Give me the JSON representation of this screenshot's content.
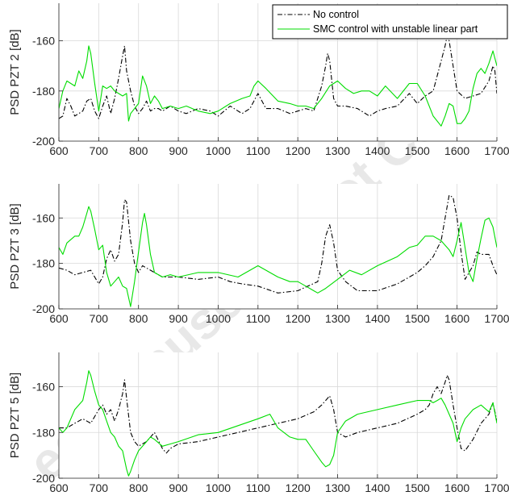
{
  "legend": {
    "entries": [
      {
        "label": "No control",
        "color": "#000000",
        "dash": "dashdot"
      },
      {
        "label": "SMC control with unstable linear part",
        "color": "#00dd00",
        "dash": "solid"
      }
    ]
  },
  "watermark": "ed Manuscript Not Co",
  "chart_data": [
    {
      "type": "line",
      "title": "",
      "xlabel": "",
      "ylabel": "PSD PZT 2 [dB]",
      "xlim": [
        600,
        1700
      ],
      "ylim": [
        -200,
        -145
      ],
      "xticks": [
        600,
        700,
        800,
        900,
        1000,
        1100,
        1200,
        1300,
        1400,
        1500,
        1600,
        1700
      ],
      "yticks": [
        -200,
        -180,
        -160
      ],
      "grid": true,
      "series": [
        {
          "name": "No control",
          "x": [
            600,
            610,
            620,
            630,
            640,
            650,
            660,
            670,
            680,
            690,
            700,
            710,
            720,
            730,
            740,
            750,
            760,
            765,
            770,
            780,
            790,
            800,
            810,
            820,
            830,
            840,
            850,
            860,
            880,
            900,
            920,
            950,
            980,
            1000,
            1030,
            1060,
            1080,
            1100,
            1120,
            1150,
            1180,
            1200,
            1220,
            1240,
            1260,
            1270,
            1275,
            1280,
            1290,
            1300,
            1320,
            1350,
            1380,
            1400,
            1420,
            1450,
            1480,
            1500,
            1520,
            1540,
            1560,
            1570,
            1575,
            1580,
            1590,
            1600,
            1620,
            1640,
            1660,
            1680,
            1690,
            1695,
            1700
          ],
          "y": [
            -191,
            -190,
            -183,
            -186,
            -190,
            -189,
            -188,
            -184,
            -183,
            -188,
            -191,
            -186,
            -182,
            -189,
            -183,
            -175,
            -166,
            -162,
            -172,
            -180,
            -186,
            -189,
            -187,
            -184,
            -188,
            -187,
            -187,
            -188,
            -186,
            -188,
            -189,
            -187,
            -188,
            -190,
            -186,
            -189,
            -187,
            -181,
            -187,
            -187,
            -189,
            -188,
            -187,
            -188,
            -178,
            -170,
            -165,
            -168,
            -183,
            -186,
            -186,
            -187,
            -190,
            -188,
            -187,
            -186,
            -181,
            -185,
            -182,
            -180,
            -168,
            -162,
            -158,
            -160,
            -170,
            -180,
            -183,
            -182,
            -181,
            -176,
            -170,
            -172,
            -181
          ]
        },
        {
          "name": "SMC control with unstable linear part",
          "x": [
            600,
            610,
            620,
            630,
            640,
            650,
            660,
            670,
            675,
            680,
            690,
            700,
            710,
            720,
            730,
            740,
            750,
            760,
            770,
            775,
            780,
            790,
            800,
            810,
            820,
            830,
            840,
            850,
            860,
            880,
            900,
            920,
            950,
            980,
            1000,
            1030,
            1060,
            1080,
            1090,
            1100,
            1120,
            1150,
            1180,
            1200,
            1220,
            1240,
            1260,
            1280,
            1300,
            1320,
            1340,
            1360,
            1380,
            1400,
            1420,
            1450,
            1480,
            1500,
            1520,
            1540,
            1560,
            1570,
            1580,
            1590,
            1600,
            1610,
            1620,
            1630,
            1640,
            1650,
            1660,
            1670,
            1680,
            1690,
            1700
          ],
          "y": [
            -187,
            -180,
            -176,
            -177,
            -178,
            -172,
            -175,
            -168,
            -162,
            -165,
            -177,
            -188,
            -178,
            -179,
            -178,
            -180,
            -181,
            -182,
            -181,
            -192,
            -189,
            -187,
            -185,
            -174,
            -178,
            -185,
            -182,
            -184,
            -187,
            -186,
            -187,
            -186,
            -188,
            -189,
            -188,
            -185,
            -183,
            -182,
            -178,
            -176,
            -179,
            -184,
            -185,
            -186,
            -186,
            -187,
            -183,
            -178,
            -176,
            -179,
            -181,
            -180,
            -180,
            -182,
            -178,
            -183,
            -177,
            -177,
            -182,
            -190,
            -194,
            -190,
            -185,
            -186,
            -193,
            -193,
            -191,
            -188,
            -179,
            -173,
            -171,
            -173,
            -169,
            -164,
            -170
          ]
        }
      ]
    },
    {
      "type": "line",
      "title": "",
      "xlabel": "",
      "ylabel": "PSD PZT 3 [dB]",
      "xlim": [
        600,
        1700
      ],
      "ylim": [
        -200,
        -145
      ],
      "xticks": [
        600,
        700,
        800,
        900,
        1000,
        1100,
        1200,
        1300,
        1400,
        1500,
        1600,
        1700
      ],
      "yticks": [
        -200,
        -180,
        -160
      ],
      "grid": true,
      "series": [
        {
          "name": "No control",
          "x": [
            600,
            620,
            640,
            660,
            680,
            700,
            710,
            720,
            730,
            740,
            750,
            760,
            765,
            770,
            780,
            790,
            800,
            810,
            820,
            840,
            860,
            880,
            900,
            950,
            1000,
            1030,
            1060,
            1100,
            1150,
            1200,
            1250,
            1260,
            1270,
            1280,
            1290,
            1300,
            1320,
            1350,
            1400,
            1450,
            1500,
            1520,
            1540,
            1560,
            1570,
            1580,
            1590,
            1600,
            1610,
            1620,
            1640,
            1650,
            1660,
            1680,
            1690,
            1700
          ],
          "y": [
            -182,
            -183,
            -185,
            -184,
            -183,
            -189,
            -186,
            -178,
            -174,
            -179,
            -176,
            -162,
            -152,
            -153,
            -170,
            -180,
            -184,
            -181,
            -182,
            -184,
            -186,
            -186,
            -186,
            -187,
            -186,
            -188,
            -189,
            -190,
            -193,
            -192,
            -188,
            -180,
            -168,
            -163,
            -171,
            -183,
            -188,
            -192,
            -192,
            -189,
            -184,
            -181,
            -177,
            -170,
            -160,
            -150,
            -151,
            -160,
            -175,
            -187,
            -181,
            -175,
            -176,
            -176,
            -181,
            -185
          ]
        },
        {
          "name": "SMC control with unstable linear part",
          "x": [
            600,
            610,
            620,
            640,
            650,
            660,
            670,
            675,
            680,
            690,
            700,
            710,
            720,
            730,
            740,
            750,
            760,
            770,
            780,
            790,
            800,
            810,
            815,
            820,
            830,
            840,
            860,
            880,
            900,
            950,
            1000,
            1050,
            1100,
            1150,
            1180,
            1200,
            1220,
            1240,
            1250,
            1270,
            1300,
            1330,
            1360,
            1400,
            1450,
            1480,
            1500,
            1520,
            1540,
            1560,
            1570,
            1580,
            1590,
            1600,
            1610,
            1620,
            1630,
            1640,
            1650,
            1660,
            1670,
            1680,
            1690,
            1700
          ],
          "y": [
            -173,
            -176,
            -171,
            -168,
            -168,
            -164,
            -158,
            -155,
            -157,
            -165,
            -174,
            -172,
            -184,
            -190,
            -188,
            -186,
            -190,
            -191,
            -199,
            -188,
            -175,
            -162,
            -158,
            -163,
            -176,
            -184,
            -186,
            -185,
            -186,
            -184,
            -184,
            -186,
            -181,
            -186,
            -188,
            -188,
            -190,
            -192,
            -193,
            -191,
            -187,
            -183,
            -185,
            -181,
            -177,
            -173,
            -172,
            -168,
            -168,
            -170,
            -172,
            -174,
            -177,
            -170,
            -162,
            -173,
            -184,
            -188,
            -178,
            -169,
            -161,
            -160,
            -164,
            -173
          ]
        }
      ]
    },
    {
      "type": "line",
      "title": "",
      "xlabel": "",
      "ylabel": "PSD PZT 5 [dB]",
      "xlim": [
        600,
        1700
      ],
      "ylim": [
        -200,
        -145
      ],
      "xticks": [
        600,
        700,
        800,
        900,
        1000,
        1100,
        1200,
        1300,
        1400,
        1500,
        1600,
        1700
      ],
      "yticks": [
        -200,
        -180,
        -160
      ],
      "grid": true,
      "series": [
        {
          "name": "No control",
          "x": [
            600,
            620,
            640,
            660,
            680,
            700,
            710,
            720,
            730,
            740,
            750,
            760,
            765,
            770,
            780,
            790,
            800,
            820,
            840,
            860,
            870,
            880,
            900,
            950,
            1000,
            1050,
            1100,
            1150,
            1200,
            1240,
            1260,
            1270,
            1280,
            1290,
            1300,
            1320,
            1350,
            1400,
            1450,
            1500,
            1520,
            1530,
            1540,
            1550,
            1560,
            1570,
            1575,
            1580,
            1590,
            1600,
            1610,
            1620,
            1640,
            1660,
            1680,
            1690,
            1700
          ],
          "y": [
            -178,
            -178,
            -176,
            -174,
            -176,
            -170,
            -168,
            -172,
            -170,
            -175,
            -170,
            -163,
            -157,
            -165,
            -180,
            -184,
            -186,
            -184,
            -180,
            -187,
            -189,
            -187,
            -185,
            -184,
            -182,
            -180,
            -178,
            -176,
            -174,
            -171,
            -168,
            -166,
            -164,
            -170,
            -180,
            -182,
            -180,
            -178,
            -176,
            -172,
            -170,
            -168,
            -163,
            -160,
            -163,
            -158,
            -155,
            -157,
            -168,
            -178,
            -187,
            -188,
            -183,
            -176,
            -172,
            -167,
            -175
          ]
        },
        {
          "name": "SMC control with unstable linear part",
          "x": [
            600,
            610,
            620,
            640,
            660,
            670,
            675,
            680,
            690,
            700,
            710,
            720,
            730,
            740,
            750,
            760,
            770,
            775,
            780,
            790,
            800,
            810,
            820,
            830,
            840,
            860,
            880,
            900,
            950,
            1000,
            1050,
            1100,
            1130,
            1150,
            1180,
            1200,
            1220,
            1240,
            1260,
            1270,
            1280,
            1290,
            1300,
            1320,
            1350,
            1400,
            1450,
            1500,
            1530,
            1540,
            1550,
            1560,
            1570,
            1580,
            1590,
            1600,
            1610,
            1620,
            1640,
            1660,
            1680,
            1690,
            1700
          ],
          "y": [
            -178,
            -180,
            -178,
            -170,
            -166,
            -158,
            -153,
            -155,
            -162,
            -168,
            -170,
            -175,
            -180,
            -182,
            -186,
            -188,
            -196,
            -199,
            -197,
            -192,
            -188,
            -186,
            -184,
            -182,
            -183,
            -186,
            -185,
            -184,
            -181,
            -180,
            -177,
            -174,
            -172,
            -178,
            -182,
            -183,
            -183,
            -188,
            -193,
            -195,
            -194,
            -190,
            -180,
            -175,
            -172,
            -170,
            -168,
            -166,
            -166,
            -167,
            -166,
            -165,
            -168,
            -172,
            -176,
            -184,
            -178,
            -174,
            -170,
            -168,
            -171,
            -167,
            -176
          ]
        }
      ]
    }
  ]
}
